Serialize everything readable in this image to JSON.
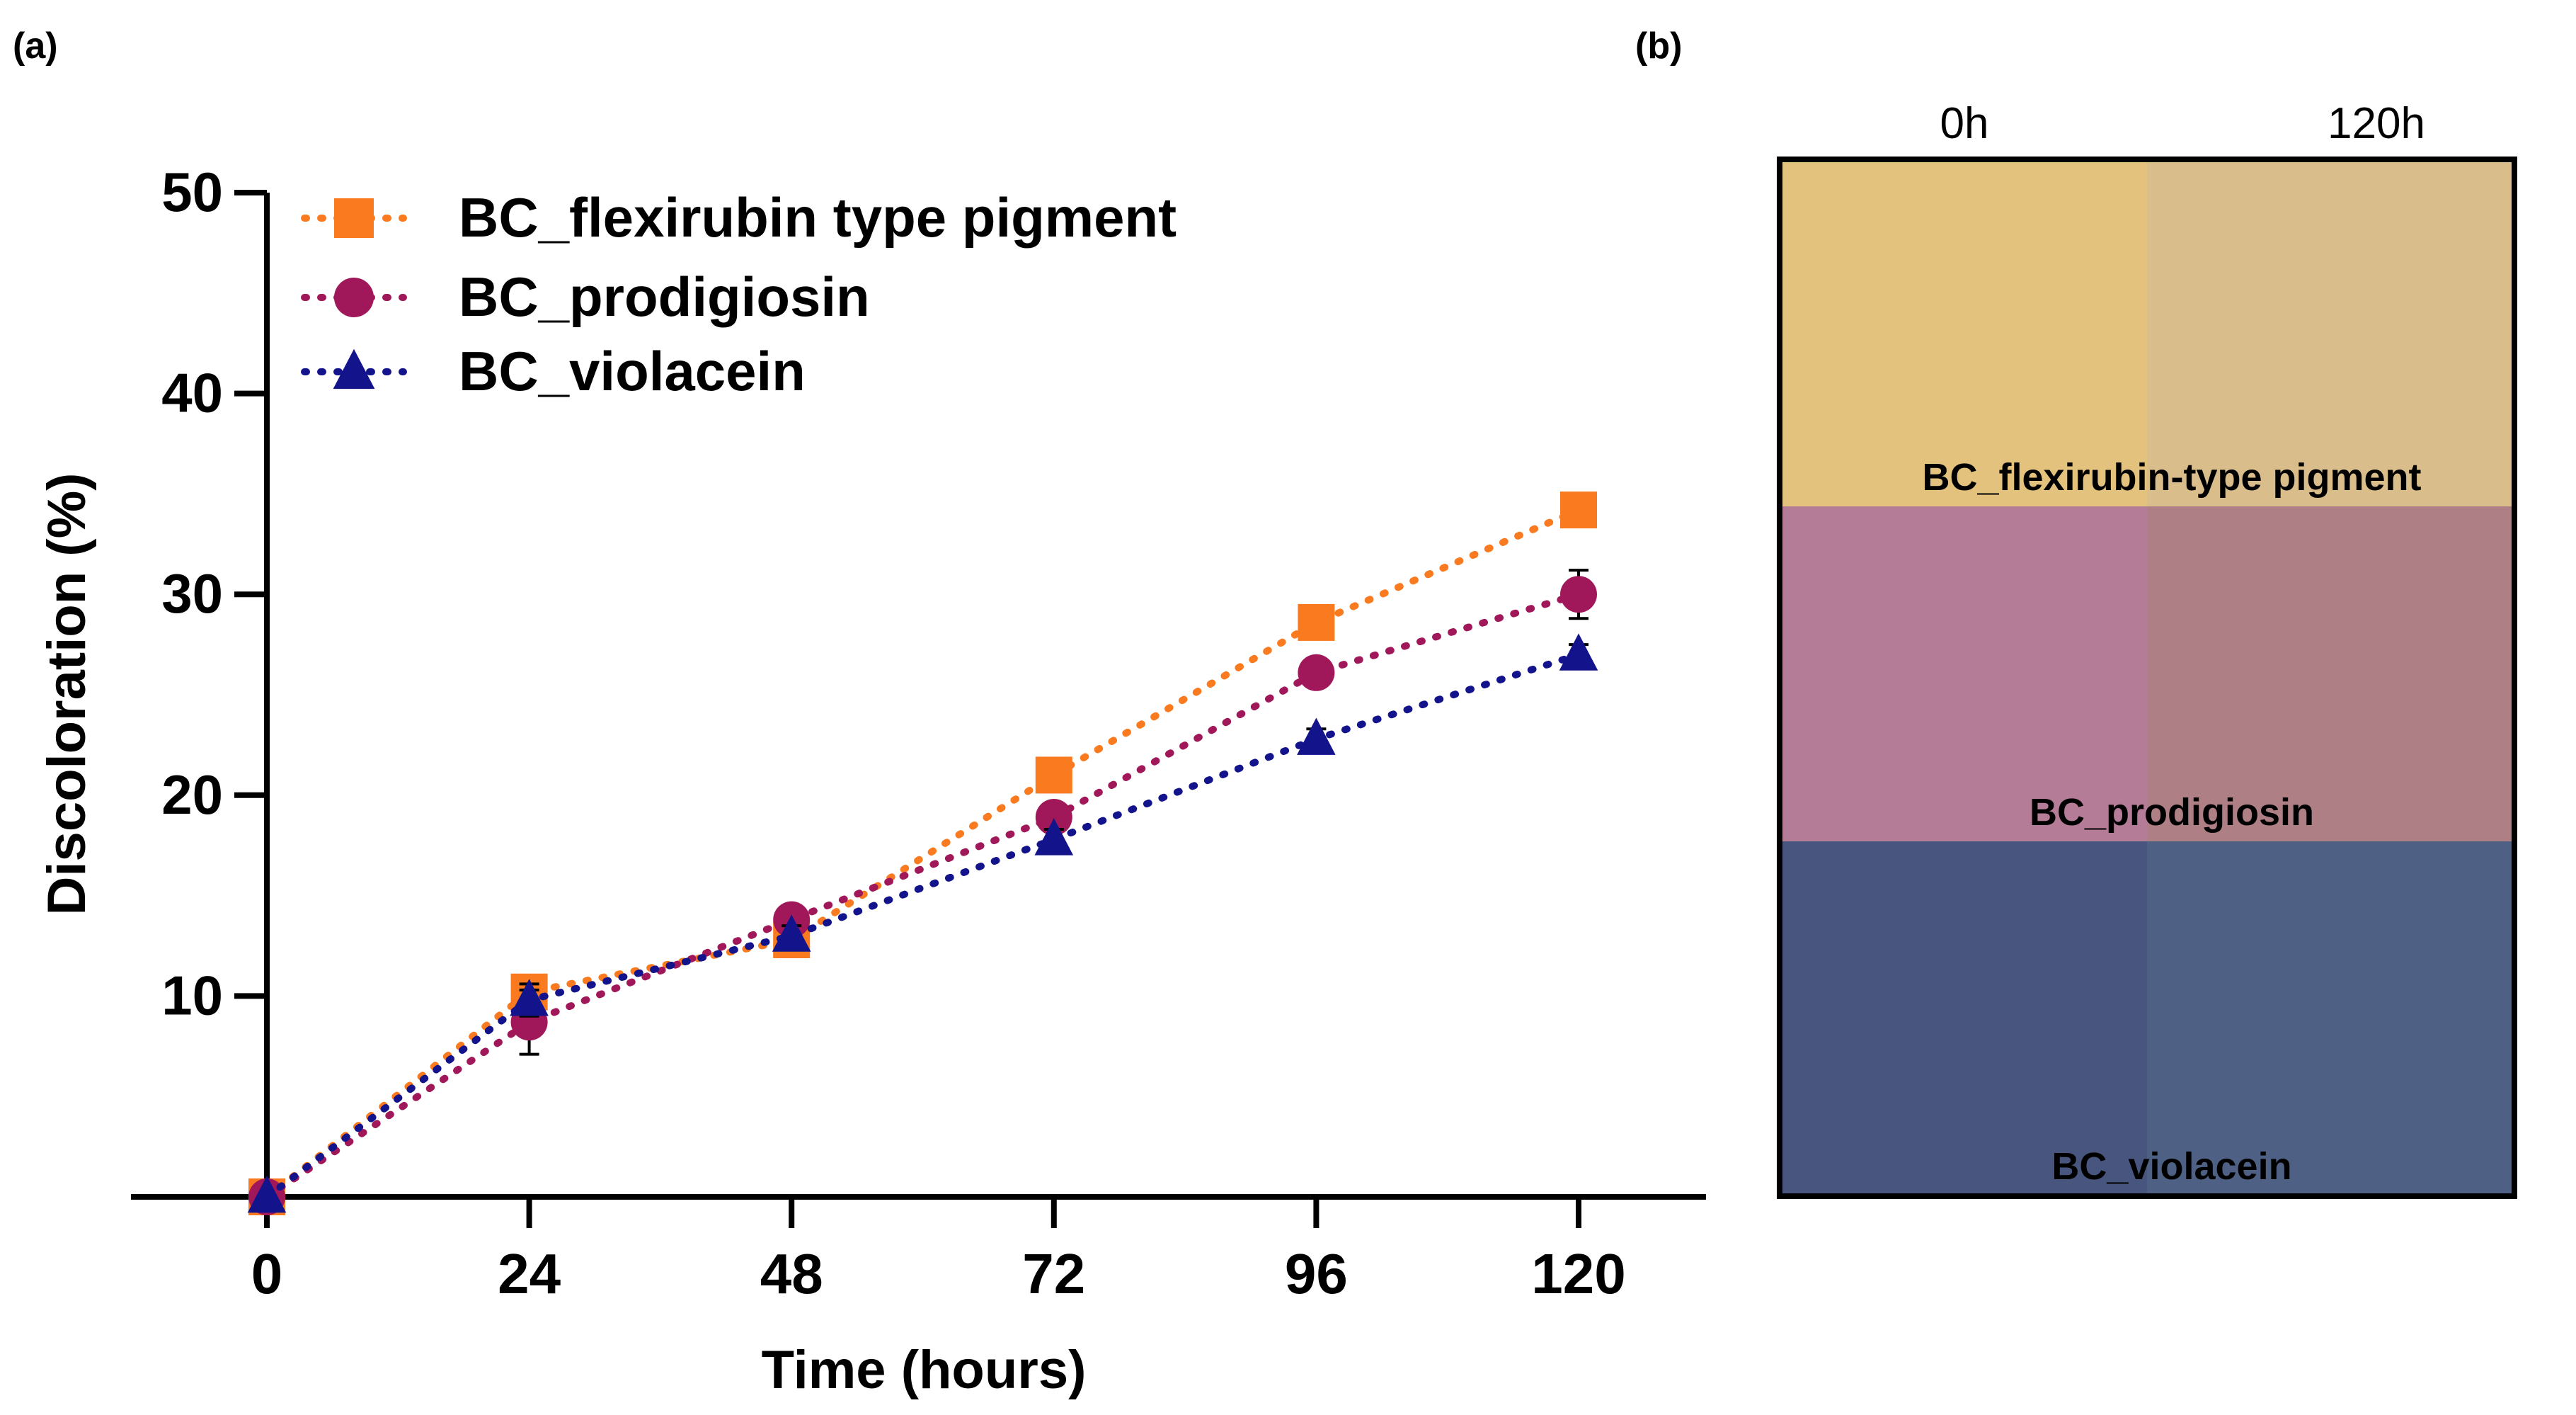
{
  "panel_labels": {
    "a": "(a)",
    "b": "(b)"
  },
  "chart_data": [
    {
      "type": "line",
      "title": "",
      "xlabel": "Time (hours)",
      "ylabel": "Discoloration (%)",
      "x": [
        0,
        24,
        48,
        72,
        96,
        120
      ],
      "x_ticks": [
        "0",
        "24",
        "48",
        "72",
        "96",
        "120"
      ],
      "xlim": [
        -12,
        132
      ],
      "ylim": [
        0,
        50
      ],
      "y_ticks": [
        10,
        20,
        30,
        40,
        50
      ],
      "y_tick_labels": [
        "10",
        "20",
        "30",
        "40",
        "50"
      ],
      "grid": false,
      "legend_position": "top-left",
      "series": [
        {
          "name": "BC_flexirubin type pigment",
          "color": "#f97a1f",
          "marker": "square",
          "values": [
            0,
            10.2,
            12.8,
            21,
            28.6,
            34.2
          ],
          "errors": [
            0,
            0.5,
            0.5,
            0.5,
            0.5,
            0.8
          ]
        },
        {
          "name": "BC_prodigiosin",
          "color": "#a0185a",
          "marker": "circle",
          "values": [
            0,
            8.7,
            13.8,
            18.9,
            26.1,
            30
          ],
          "errors": [
            0,
            1.6,
            0.5,
            0.5,
            0.5,
            1.2
          ]
        },
        {
          "name": "BC_violacein",
          "color": "#13138c",
          "marker": "triangle",
          "values": [
            0,
            9.8,
            13,
            17.8,
            22.8,
            27
          ],
          "errors": [
            0,
            0.8,
            0.5,
            0.5,
            0.5,
            0.5
          ]
        }
      ]
    },
    {
      "type": "heatmap",
      "columns": [
        "0h",
        "120h"
      ],
      "rows": [
        {
          "label": "BC_flexirubin-type pigment",
          "colors": [
            "#e2c27d",
            "#d9be8c"
          ]
        },
        {
          "label": "BC_prodigiosin",
          "colors": [
            "#b57c98",
            "#ae8086"
          ]
        },
        {
          "label": "BC_violacein",
          "colors": [
            "#48567f",
            "#4e6185"
          ]
        }
      ]
    }
  ]
}
